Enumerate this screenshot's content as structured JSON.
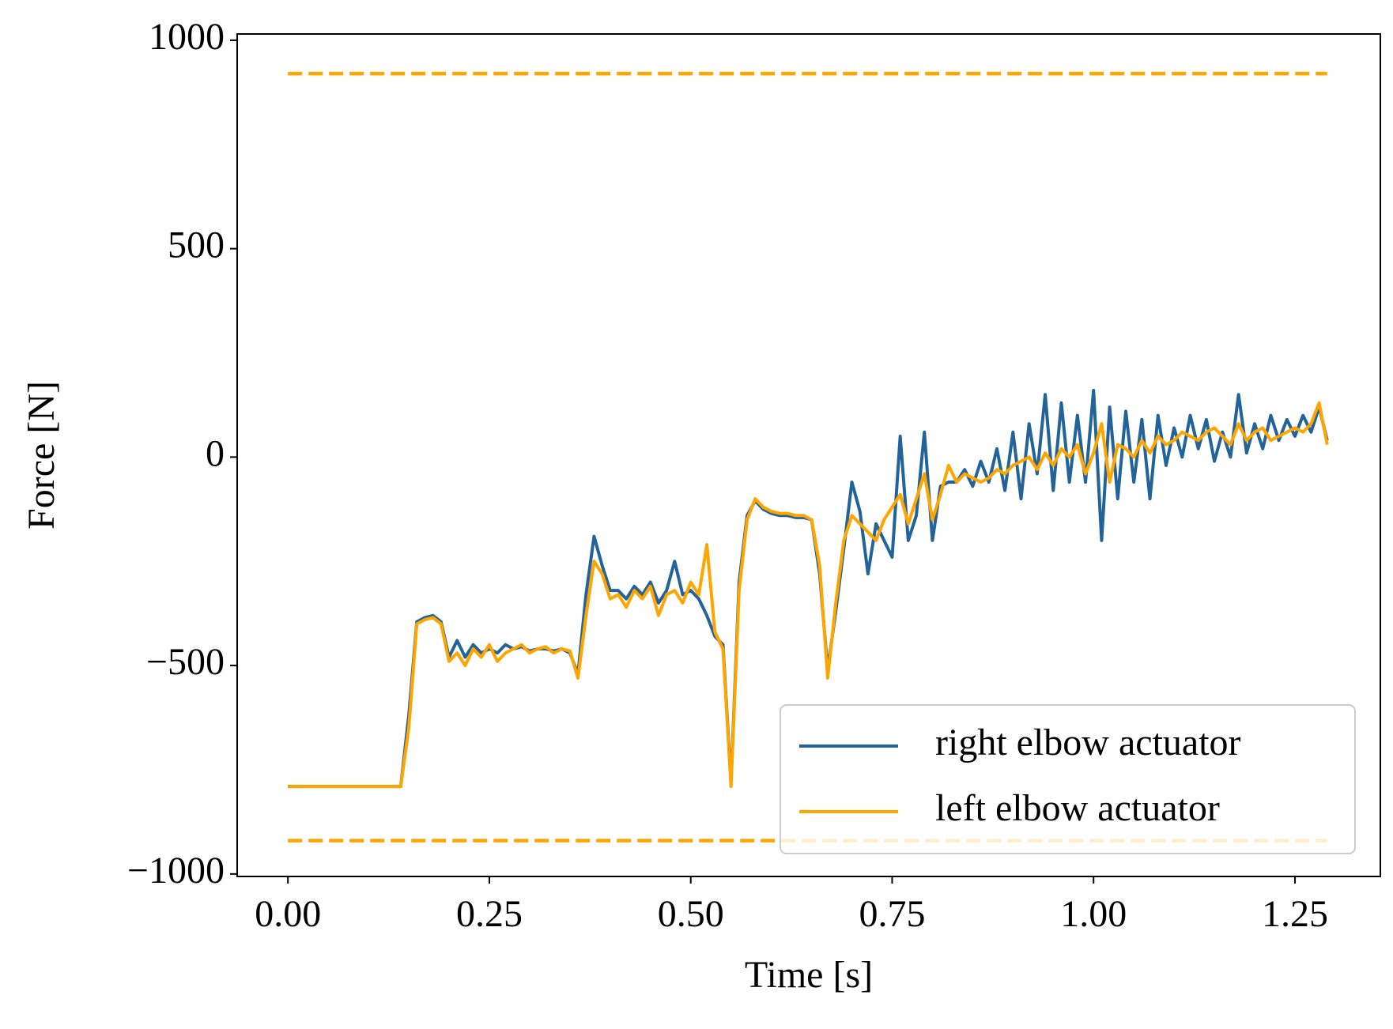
{
  "chart_data": {
    "type": "line",
    "xlabel": "Time [s]",
    "ylabel": "Force [N]",
    "xlim": [
      -0.063,
      1.356
    ],
    "ylim": [
      -1006,
      1015
    ],
    "xticks": [
      {
        "value": 0,
        "label": "0.00"
      },
      {
        "value": 0.25,
        "label": "0.25"
      },
      {
        "value": 0.5,
        "label": "0.50"
      },
      {
        "value": 0.75,
        "label": "0.75"
      },
      {
        "value": 1,
        "label": "1.00"
      },
      {
        "value": 1.25,
        "label": "1.25"
      }
    ],
    "yticks": [
      {
        "value": -1000,
        "label": "−1000"
      },
      {
        "value": -500,
        "label": "−500"
      },
      0,
      500,
      1000
    ],
    "legend": "lower right",
    "reference_lines": [
      920,
      -920
    ],
    "reference_x": [
      0,
      1.29
    ],
    "reference_color": "#ffa500",
    "x": [
      0,
      0.01,
      0.02,
      0.03,
      0.04,
      0.05,
      0.06,
      0.07,
      0.08,
      0.09,
      0.1,
      0.11,
      0.12,
      0.13,
      0.14,
      0.15,
      0.16,
      0.17,
      0.18,
      0.19,
      0.2,
      0.21,
      0.22,
      0.23,
      0.24,
      0.25,
      0.26,
      0.27,
      0.28,
      0.29,
      0.3,
      0.31,
      0.32,
      0.33,
      0.34,
      0.35,
      0.36,
      0.37,
      0.38,
      0.39,
      0.4,
      0.41,
      0.42,
      0.43,
      0.44,
      0.45,
      0.46,
      0.47,
      0.48,
      0.49,
      0.5,
      0.51,
      0.52,
      0.53,
      0.54,
      0.55,
      0.56,
      0.57,
      0.58,
      0.59,
      0.6,
      0.61,
      0.62,
      0.63,
      0.64,
      0.65,
      0.66,
      0.67,
      0.68,
      0.69,
      0.7,
      0.71,
      0.72,
      0.73,
      0.74,
      0.75,
      0.76,
      0.77,
      0.78,
      0.79,
      0.8,
      0.81,
      0.82,
      0.83,
      0.84,
      0.85,
      0.86,
      0.87,
      0.88,
      0.89,
      0.9,
      0.91,
      0.92,
      0.93,
      0.94,
      0.95,
      0.96,
      0.97,
      0.98,
      0.99,
      1,
      1.01,
      1.02,
      1.03,
      1.04,
      1.05,
      1.06,
      1.07,
      1.08,
      1.09,
      1.1,
      1.11,
      1.12,
      1.13,
      1.14,
      1.15,
      1.16,
      1.17,
      1.18,
      1.19,
      1.2,
      1.21,
      1.22,
      1.23,
      1.24,
      1.25,
      1.26,
      1.27,
      1.28,
      1.29
    ],
    "series": [
      {
        "name": "right elbow actuator",
        "color": "#22639a",
        "values": [
          -790,
          -790,
          -790,
          -790,
          -790,
          -790,
          -790,
          -790,
          -790,
          -790,
          -790,
          -790,
          -790,
          -790,
          -790,
          -620,
          -395,
          -385,
          -380,
          -395,
          -480,
          -440,
          -480,
          -450,
          -470,
          -460,
          -470,
          -450,
          -460,
          -455,
          -465,
          -460,
          -460,
          -465,
          -460,
          -470,
          -520,
          -330,
          -190,
          -260,
          -320,
          -320,
          -340,
          -310,
          -330,
          -300,
          -350,
          -320,
          -250,
          -330,
          -320,
          -340,
          -380,
          -430,
          -450,
          -780,
          -300,
          -140,
          -105,
          -125,
          -135,
          -140,
          -140,
          -145,
          -145,
          -150,
          -280,
          -510,
          -370,
          -220,
          -60,
          -130,
          -280,
          -160,
          -200,
          -240,
          50,
          -200,
          -140,
          60,
          -200,
          -70,
          -60,
          -60,
          -30,
          -70,
          -10,
          -60,
          20,
          -80,
          60,
          -100,
          80,
          -40,
          150,
          -80,
          130,
          -60,
          100,
          -60,
          160,
          -200,
          120,
          -100,
          110,
          -60,
          90,
          -100,
          100,
          -20,
          70,
          0,
          100,
          20,
          90,
          -10,
          60,
          0,
          150,
          10,
          80,
          20,
          100,
          40,
          90,
          50,
          100,
          60,
          120,
          40
        ]
      },
      {
        "name": "left elbow actuator",
        "color": "#ffa500",
        "values": [
          -790,
          -790,
          -790,
          -790,
          -790,
          -790,
          -790,
          -790,
          -790,
          -790,
          -790,
          -790,
          -790,
          -790,
          -790,
          -650,
          -400,
          -390,
          -385,
          -400,
          -490,
          -470,
          -500,
          -460,
          -480,
          -450,
          -490,
          -470,
          -460,
          -450,
          -470,
          -460,
          -455,
          -470,
          -460,
          -465,
          -530,
          -380,
          -250,
          -280,
          -340,
          -330,
          -360,
          -320,
          -340,
          -310,
          -380,
          -330,
          -320,
          -350,
          -300,
          -330,
          -210,
          -420,
          -460,
          -790,
          -320,
          -150,
          -100,
          -120,
          -130,
          -135,
          -135,
          -140,
          -140,
          -150,
          -260,
          -530,
          -350,
          -200,
          -140,
          -160,
          -180,
          -200,
          -150,
          -120,
          -90,
          -160,
          -100,
          -40,
          -150,
          -90,
          -20,
          -60,
          -40,
          -50,
          -60,
          -50,
          -30,
          -40,
          -20,
          -10,
          0,
          -30,
          10,
          -20,
          20,
          0,
          30,
          -40,
          10,
          80,
          -60,
          30,
          20,
          0,
          40,
          10,
          50,
          30,
          40,
          60,
          50,
          40,
          60,
          70,
          50,
          30,
          80,
          40,
          60,
          70,
          40,
          50,
          60,
          70,
          60,
          80,
          130,
          30
        ]
      }
    ]
  }
}
